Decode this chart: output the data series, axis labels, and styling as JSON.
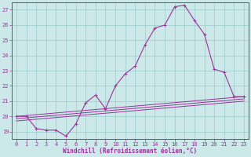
{
  "xlabel": "Windchill (Refroidissement éolien,°C)",
  "bg_color": "#cce8e8",
  "grid_color": "#99cccc",
  "line_color": "#993399",
  "spine_color": "#993399",
  "xlim": [
    -0.5,
    23.5
  ],
  "ylim": [
    18.5,
    27.5
  ],
  "yticks": [
    19,
    20,
    21,
    22,
    23,
    24,
    25,
    26,
    27
  ],
  "xticks": [
    0,
    1,
    2,
    3,
    4,
    5,
    6,
    7,
    8,
    9,
    10,
    11,
    12,
    13,
    14,
    15,
    16,
    17,
    18,
    19,
    20,
    21,
    22,
    23
  ],
  "line1_x": [
    0,
    1,
    2,
    3,
    4,
    5,
    6,
    7,
    8,
    9,
    10,
    11,
    12,
    13,
    14,
    15,
    16,
    17,
    18,
    19,
    20,
    21,
    22,
    23
  ],
  "line1_y": [
    20.0,
    20.0,
    19.2,
    19.1,
    19.1,
    18.7,
    19.5,
    20.9,
    21.4,
    20.5,
    22.0,
    22.8,
    23.3,
    24.7,
    25.8,
    26.0,
    27.2,
    27.3,
    26.3,
    25.4,
    23.1,
    22.9,
    21.3,
    21.3
  ],
  "line2_x": [
    0,
    23
  ],
  "line2_y": [
    20.0,
    21.3
  ],
  "line3_x": [
    0,
    23
  ],
  "line3_y": [
    19.85,
    21.15
  ],
  "line4_x": [
    0,
    23
  ],
  "line4_y": [
    19.7,
    21.0
  ],
  "tick_fontsize": 5,
  "xlabel_fontsize": 5.5
}
